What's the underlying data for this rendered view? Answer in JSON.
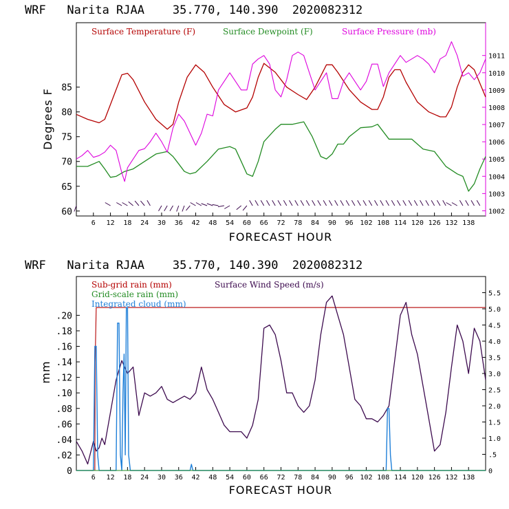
{
  "colors": {
    "temperature": "#b40000",
    "dewpoint": "#228b22",
    "pressure": "#dd00dd",
    "subgrid_rain": "#b40000",
    "grid_rain": "#228b22",
    "cloud": "#1e7fd8",
    "wind": "#3c0a4e",
    "wind_barbs": "#3c0a4e"
  },
  "chart_data": [
    {
      "type": "line",
      "title": "WRF   Narita RJAA    35.770, 140.390  2020082312",
      "xlabel": "FORECAST HOUR",
      "ylabel": "Degrees F",
      "xlim": [
        0,
        144
      ],
      "ylim": [
        59,
        98
      ],
      "y2lim": [
        1001.7,
        1012.9
      ],
      "x_ticks": [
        6,
        12,
        18,
        24,
        30,
        36,
        42,
        48,
        54,
        60,
        66,
        72,
        78,
        84,
        90,
        96,
        102,
        108,
        114,
        120,
        126,
        132,
        138
      ],
      "y_ticks": [
        "60",
        "65",
        "70",
        "75",
        "80",
        "85"
      ],
      "y_tick_values": [
        60,
        65,
        70,
        75,
        80,
        85
      ],
      "y2_ticks": [
        "1002",
        "1003",
        "1004",
        "1005",
        "1006",
        "1007",
        "1008",
        "1009",
        "1010",
        "1011"
      ],
      "y2_tick_values": [
        1002,
        1003,
        1004,
        1005,
        1006,
        1007,
        1008,
        1009,
        1010,
        1011
      ],
      "legend": [
        "Surface Temperature (F)",
        "Surface Dewpoint (F)",
        "Surface Pressure (mb)"
      ],
      "series": [
        {
          "name": "Surface Temperature (F)",
          "axis": "left",
          "x": [
            0,
            4,
            8,
            10,
            13,
            16,
            18,
            20,
            24,
            28,
            32,
            34,
            36,
            39,
            42,
            45,
            48,
            52,
            56,
            60,
            62,
            64,
            66,
            70,
            74,
            78,
            81,
            84,
            88,
            90,
            92,
            96,
            100,
            104,
            106,
            108,
            110,
            112,
            114,
            116,
            120,
            124,
            128,
            130,
            132,
            134,
            136,
            138,
            140,
            144
          ],
          "y": [
            79.5,
            78.5,
            77.8,
            78.5,
            83,
            87.5,
            87.8,
            86.5,
            82,
            78.5,
            76.5,
            77.5,
            82,
            87,
            89.5,
            88,
            85,
            81.5,
            80,
            80.8,
            83,
            87,
            89.8,
            88,
            85,
            83.5,
            82.5,
            85,
            89.5,
            89.5,
            88,
            84.5,
            82,
            80.5,
            80.5,
            83,
            87,
            88.5,
            88.5,
            86,
            82,
            80,
            79,
            79,
            81,
            85,
            88,
            89.5,
            88.5,
            83
          ]
        },
        {
          "name": "Surface Dewpoint (F)",
          "axis": "left",
          "x": [
            0,
            4,
            8,
            10,
            12,
            14,
            17,
            20,
            24,
            28,
            32,
            34,
            36,
            38,
            40,
            42,
            46,
            50,
            54,
            56,
            58,
            60,
            62,
            64,
            66,
            70,
            72,
            76,
            80,
            83,
            86,
            88,
            90,
            92,
            94,
            96,
            100,
            104,
            106,
            110,
            114,
            118,
            122,
            126,
            130,
            134,
            136,
            137,
            138,
            140,
            142,
            144
          ],
          "y": [
            69,
            69,
            70,
            68.5,
            66.8,
            67,
            68,
            68.5,
            70,
            71.5,
            72,
            71,
            69.5,
            68,
            67.5,
            67.8,
            70,
            72.5,
            73,
            72.5,
            70,
            67.5,
            67,
            70,
            74,
            76.5,
            77.5,
            77.5,
            78,
            75,
            71,
            70.5,
            71.5,
            73.5,
            73.5,
            75,
            76.8,
            77,
            77.5,
            74.5,
            74.5,
            74.5,
            72.5,
            72,
            69,
            67.5,
            67,
            65.5,
            64,
            65.5,
            68.5,
            71
          ]
        },
        {
          "name": "Surface Pressure (mb)",
          "axis": "right",
          "x": [
            0,
            2,
            4,
            6,
            8,
            10,
            12,
            14,
            16,
            17,
            18,
            20,
            22,
            24,
            26,
            28,
            30,
            32,
            34,
            36,
            38,
            40,
            42,
            44,
            46,
            48,
            50,
            52,
            54,
            56,
            58,
            60,
            62,
            64,
            66,
            68,
            70,
            72,
            74,
            76,
            78,
            80,
            82,
            84,
            86,
            88,
            90,
            92,
            94,
            96,
            98,
            100,
            102,
            104,
            106,
            108,
            110,
            112,
            114,
            116,
            118,
            120,
            122,
            124,
            126,
            128,
            130,
            132,
            134,
            136,
            138,
            140,
            142,
            144
          ],
          "y": [
            1005,
            1005.2,
            1005.5,
            1005.1,
            1005.2,
            1005.4,
            1005.8,
            1005.5,
            1004.2,
            1003.7,
            1004.5,
            1005.0,
            1005.5,
            1005.6,
            1006.0,
            1006.5,
            1006.0,
            1005.4,
            1006.8,
            1007.6,
            1007.2,
            1006.5,
            1005.8,
            1006.5,
            1007.6,
            1007.5,
            1009.0,
            1009.5,
            1010.0,
            1009.5,
            1009.0,
            1009.0,
            1010.5,
            1010.8,
            1011.0,
            1010.5,
            1009.0,
            1008.6,
            1009.6,
            1011.0,
            1011.2,
            1011.0,
            1010.0,
            1009.0,
            1009.5,
            1010.0,
            1008.5,
            1008.5,
            1009.5,
            1010.0,
            1009.5,
            1009.0,
            1009.5,
            1010.5,
            1010.5,
            1009.2,
            1010.0,
            1010.5,
            1011.0,
            1010.6,
            1010.8,
            1011.0,
            1010.8,
            1010.5,
            1010.0,
            1010.8,
            1011.0,
            1011.8,
            1011.0,
            1009.8,
            1010.0,
            1009.6,
            1010.0,
            1010.8
          ]
        }
      ],
      "wind_barbs": {
        "x": [
          0,
          12,
          16,
          18,
          20,
          22,
          24,
          26,
          30,
          32,
          34,
          36,
          38,
          40,
          42,
          44,
          46,
          48,
          50,
          52,
          54,
          58,
          60,
          62,
          64,
          66,
          68,
          70,
          72,
          74,
          76,
          78,
          80,
          82,
          84,
          86,
          88,
          90,
          92,
          94,
          96,
          98,
          100,
          102,
          104,
          106,
          108,
          110,
          112,
          114,
          116,
          118,
          120,
          122,
          124,
          126,
          128,
          130,
          132,
          134,
          136,
          138,
          140,
          142
        ],
        "direction_deg": [
          200,
          300,
          300,
          300,
          310,
          320,
          320,
          330,
          210,
          210,
          210,
          200,
          200,
          220,
          300,
          300,
          290,
          290,
          280,
          260,
          240,
          230,
          220,
          330,
          330,
          330,
          330,
          330,
          330,
          330,
          330,
          330,
          330,
          330,
          330,
          330,
          330,
          330,
          330,
          330,
          330,
          330,
          330,
          330,
          330,
          330,
          330,
          330,
          330,
          330,
          330,
          330,
          330,
          330,
          330,
          330,
          330,
          330,
          300,
          300,
          330,
          330,
          330,
          330
        ]
      }
    },
    {
      "type": "line",
      "title": "WRF   Narita RJAA    35.770, 140.390  2020082312",
      "xlabel": "FORECAST HOUR",
      "ylabel": "mm",
      "xlim": [
        0,
        144
      ],
      "ylim": [
        0,
        0.25
      ],
      "y2lim": [
        0,
        6.0
      ],
      "x_ticks": [
        6,
        12,
        18,
        24,
        30,
        36,
        42,
        48,
        54,
        60,
        66,
        72,
        78,
        84,
        90,
        96,
        102,
        108,
        114,
        120,
        126,
        132,
        138
      ],
      "y_ticks": [
        "0",
        ".02",
        ".04",
        ".06",
        ".08",
        ".10",
        ".12",
        ".14",
        ".16",
        ".18",
        ".20"
      ],
      "y_tick_values": [
        0,
        0.02,
        0.04,
        0.06,
        0.08,
        0.1,
        0.12,
        0.14,
        0.16,
        0.18,
        0.2
      ],
      "y2_ticks": [
        "0",
        ".5",
        "1.0",
        "1.5",
        "2.0",
        "2.5",
        "3.0",
        "3.5",
        "4.0",
        "4.5",
        "5.0",
        "5.5"
      ],
      "y2_tick_values": [
        0,
        0.5,
        1.0,
        1.5,
        2.0,
        2.5,
        3.0,
        3.5,
        4.0,
        4.5,
        5.0,
        5.5
      ],
      "legend": [
        "Sub-grid rain (mm)",
        "Surface Wind Speed (m/s)",
        "Grid-scale rain (mm)",
        "Integrated cloud (mm)"
      ],
      "series": [
        {
          "name": "Sub-grid rain (mm)",
          "axis": "left",
          "x": [
            0,
            6.5,
            6.6,
            7.0,
            144
          ],
          "y": [
            0,
            0,
            0.14,
            0.21,
            0.21
          ]
        },
        {
          "name": "Surface Wind Speed (m/s)",
          "axis": "right",
          "x": [
            0,
            2,
            4,
            6,
            7,
            8,
            9,
            10,
            12,
            14,
            16,
            17,
            18,
            20,
            22,
            24,
            26,
            28,
            30,
            32,
            34,
            36,
            38,
            40,
            42,
            44,
            46,
            48,
            50,
            52,
            54,
            56,
            58,
            60,
            62,
            64,
            66,
            68,
            70,
            72,
            74,
            76,
            78,
            80,
            82,
            84,
            86,
            88,
            90,
            92,
            94,
            96,
            98,
            100,
            102,
            104,
            106,
            108,
            110,
            112,
            114,
            116,
            118,
            120,
            122,
            124,
            126,
            128,
            130,
            132,
            134,
            136,
            138,
            140,
            142,
            144
          ],
          "y": [
            0.9,
            0.6,
            0.2,
            0.9,
            0.6,
            0.7,
            1.0,
            0.8,
            1.8,
            2.8,
            3.4,
            3.2,
            3.0,
            3.2,
            1.7,
            2.4,
            2.3,
            2.4,
            2.6,
            2.2,
            2.1,
            2.2,
            2.3,
            2.2,
            2.4,
            3.2,
            2.5,
            2.2,
            1.8,
            1.4,
            1.2,
            1.2,
            1.2,
            1.0,
            1.4,
            2.2,
            4.4,
            4.5,
            4.2,
            3.4,
            2.4,
            2.4,
            2.0,
            1.8,
            2.0,
            2.8,
            4.2,
            5.2,
            5.4,
            4.8,
            4.2,
            3.2,
            2.2,
            2.0,
            1.6,
            1.6,
            1.5,
            1.7,
            2.0,
            3.4,
            4.8,
            5.2,
            4.2,
            3.6,
            2.6,
            1.6,
            0.6,
            0.8,
            1.8,
            3.2,
            4.5,
            4.0,
            3.0,
            4.4,
            4.0,
            2.8
          ]
        },
        {
          "name": "Integrated cloud (mm)",
          "axis": "left",
          "x": [
            0,
            5,
            6.0,
            6.5,
            7.0,
            7.5,
            8,
            12,
            14.0,
            14.5,
            15.0,
            15.5,
            16.0,
            16.4,
            16.8,
            17.2,
            17.6,
            18.0,
            18.4,
            19,
            40,
            40.5,
            41,
            109,
            109.5,
            110,
            110.5,
            111,
            144
          ],
          "y": [
            0,
            0,
            0,
            0.16,
            0.16,
            0.02,
            0,
            0,
            0,
            0.19,
            0.19,
            0.02,
            0,
            0.1,
            0.15,
            0.02,
            0.21,
            0.21,
            0.02,
            0,
            0,
            0.008,
            0,
            0,
            0.08,
            0.08,
            0.02,
            0,
            0
          ]
        },
        {
          "name": "Grid-scale rain (mm)",
          "axis": "left",
          "x": [
            0,
            144
          ],
          "y": [
            0,
            0
          ]
        }
      ]
    }
  ]
}
